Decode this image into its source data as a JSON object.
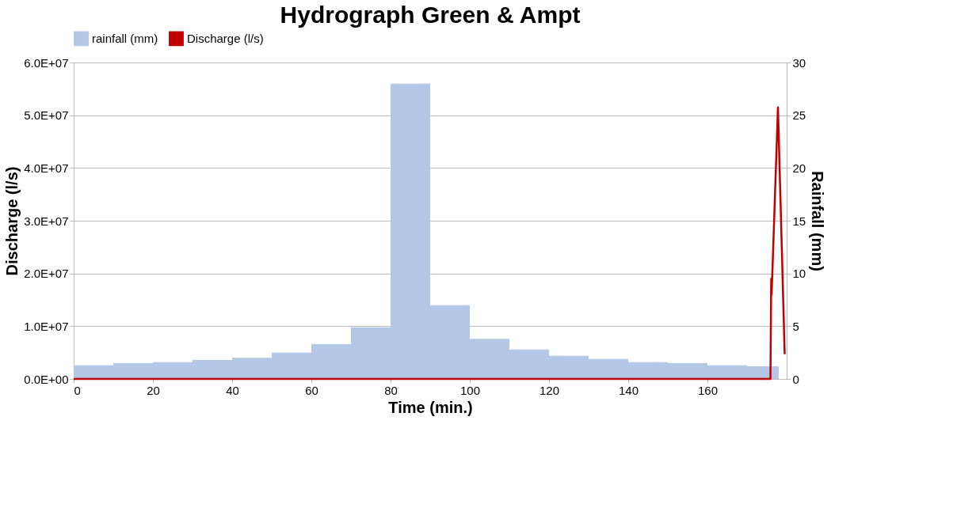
{
  "chart_data": {
    "type": "line",
    "title": "Hydrograph Green & Ampt",
    "xlabel": "Time (min.)",
    "ylabel": "Discharge (l/s)",
    "y2label": "Rainfall (mm)",
    "series": [
      {
        "name": "rainfall (mm)",
        "type": "histogram",
        "axis": "y2",
        "color": "#b4c7e7",
        "bins": [
          0,
          10,
          20,
          30,
          40,
          50,
          60,
          70,
          80,
          90,
          100,
          110,
          120,
          130,
          140,
          150,
          160,
          170,
          178
        ],
        "values": [
          1.3,
          1.5,
          1.6,
          1.8,
          2.0,
          2.5,
          3.3,
          4.9,
          28.0,
          7.0,
          3.8,
          2.8,
          2.2,
          1.9,
          1.6,
          1.5,
          1.3,
          1.2
        ]
      },
      {
        "name": "Discharge (l/s)",
        "color": "#c00000",
        "x": [
          0,
          175.9,
          176.1,
          176.2,
          177.8,
          179.5
        ],
        "values": [
          0,
          0,
          19000000,
          16000000,
          51500000,
          4700000
        ]
      }
    ],
    "xlim": [
      0,
      180
    ],
    "xticks": [
      0,
      20,
      40,
      60,
      80,
      100,
      120,
      140,
      160
    ],
    "ylim": [
      0,
      60000000
    ],
    "yticks": [
      {
        "value": 0,
        "label": "0.0E+00"
      },
      {
        "value": 10000000,
        "label": "1.0E+07"
      },
      {
        "value": 20000000,
        "label": "2.0E+07"
      },
      {
        "value": 30000000,
        "label": "3.0E+07"
      },
      {
        "value": 40000000,
        "label": "4.0E+07"
      },
      {
        "value": 50000000,
        "label": "5.0E+07"
      },
      {
        "value": 60000000,
        "label": "6.0E+07"
      }
    ],
    "y2lim": [
      0,
      30
    ],
    "y2ticks": [
      0,
      5,
      10,
      15,
      20,
      25,
      30
    ],
    "grid": "y",
    "legend": "top"
  }
}
